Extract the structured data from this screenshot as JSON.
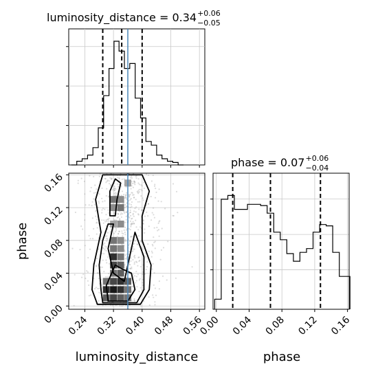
{
  "chart_data": [
    {
      "type": "histogram",
      "panel": "luminosity_distance marginal",
      "title": {
        "main": "luminosity_distance = 0.34",
        "sup": "+0.06",
        "sub": "−0.05"
      },
      "x_range": [
        0.195,
        0.575
      ],
      "y_range": [
        0,
        1
      ],
      "bins": [
        {
          "x": 0.21,
          "y": 0.0
        },
        {
          "x": 0.225,
          "y": 0.03
        },
        {
          "x": 0.24,
          "y": 0.05
        },
        {
          "x": 0.255,
          "y": 0.08
        },
        {
          "x": 0.27,
          "y": 0.14
        },
        {
          "x": 0.285,
          "y": 0.3
        },
        {
          "x": 0.3,
          "y": 0.56
        },
        {
          "x": 0.315,
          "y": 0.78
        },
        {
          "x": 0.328,
          "y": 1.0
        },
        {
          "x": 0.343,
          "y": 0.92
        },
        {
          "x": 0.358,
          "y": 0.78
        },
        {
          "x": 0.373,
          "y": 0.82
        },
        {
          "x": 0.388,
          "y": 0.54
        },
        {
          "x": 0.403,
          "y": 0.38
        },
        {
          "x": 0.418,
          "y": 0.19
        },
        {
          "x": 0.433,
          "y": 0.16
        },
        {
          "x": 0.448,
          "y": 0.08
        },
        {
          "x": 0.463,
          "y": 0.05
        },
        {
          "x": 0.478,
          "y": 0.03
        },
        {
          "x": 0.493,
          "y": 0.02
        },
        {
          "x": 0.508,
          "y": 0.0
        }
      ],
      "quantile_lines": [
        0.29,
        0.343,
        0.4
      ],
      "truth_line": 0.36
    },
    {
      "type": "histogram",
      "panel": "phase marginal",
      "title": {
        "main": "phase = 0.07",
        "sup": "+0.06",
        "sub": "−0.04"
      },
      "x_range": [
        -0.004,
        0.162
      ],
      "y_range": [
        0,
        1
      ],
      "x_ticks": [
        "0.00",
        "0.04",
        "0.08",
        "0.12",
        "0.16"
      ],
      "x_tick_values": [
        0.0,
        0.04,
        0.08,
        0.12,
        0.16
      ],
      "xlabel": "phase",
      "bins": [
        {
          "x": 0.002,
          "y": 0.08
        },
        {
          "x": 0.01,
          "y": 0.87
        },
        {
          "x": 0.018,
          "y": 0.9
        },
        {
          "x": 0.026,
          "y": 0.79
        },
        {
          "x": 0.034,
          "y": 0.79
        },
        {
          "x": 0.042,
          "y": 0.83
        },
        {
          "x": 0.05,
          "y": 0.83
        },
        {
          "x": 0.058,
          "y": 0.82
        },
        {
          "x": 0.066,
          "y": 0.76
        },
        {
          "x": 0.074,
          "y": 0.61
        },
        {
          "x": 0.082,
          "y": 0.55
        },
        {
          "x": 0.09,
          "y": 0.44
        },
        {
          "x": 0.098,
          "y": 0.38
        },
        {
          "x": 0.106,
          "y": 0.45
        },
        {
          "x": 0.114,
          "y": 0.48
        },
        {
          "x": 0.122,
          "y": 0.61
        },
        {
          "x": 0.13,
          "y": 0.67
        },
        {
          "x": 0.138,
          "y": 0.66
        },
        {
          "x": 0.146,
          "y": 0.45
        },
        {
          "x": 0.154,
          "y": 0.26
        },
        {
          "x": 0.16,
          "y": 0.26
        }
      ],
      "quantile_lines": [
        0.02,
        0.066,
        0.127
      ]
    },
    {
      "type": "heatmap",
      "panel": "2d posterior",
      "x_range": [
        0.195,
        0.575
      ],
      "y_range": [
        -0.004,
        0.162
      ],
      "x_ticks": [
        "0.24",
        "0.32",
        "0.40",
        "0.48",
        "0.56"
      ],
      "x_tick_values": [
        0.24,
        0.32,
        0.4,
        0.48,
        0.56
      ],
      "y_ticks": [
        "0.00",
        "0.04",
        "0.08",
        "0.12",
        "0.16"
      ],
      "y_tick_values": [
        0.0,
        0.04,
        0.08,
        0.12,
        0.16
      ],
      "xlabel": "luminosity_distance",
      "ylabel": "phase",
      "density_cells": [
        {
          "x": 0.3,
          "y": 0.01,
          "v": 0.7
        },
        {
          "x": 0.32,
          "y": 0.01,
          "v": 0.8
        },
        {
          "x": 0.34,
          "y": 0.01,
          "v": 0.7
        },
        {
          "x": 0.36,
          "y": 0.01,
          "v": 0.6
        },
        {
          "x": 0.3,
          "y": 0.02,
          "v": 0.9
        },
        {
          "x": 0.32,
          "y": 0.02,
          "v": 1.0
        },
        {
          "x": 0.34,
          "y": 0.02,
          "v": 0.9
        },
        {
          "x": 0.36,
          "y": 0.02,
          "v": 0.6
        },
        {
          "x": 0.3,
          "y": 0.03,
          "v": 0.6
        },
        {
          "x": 0.32,
          "y": 0.03,
          "v": 0.8
        },
        {
          "x": 0.34,
          "y": 0.03,
          "v": 0.9
        },
        {
          "x": 0.36,
          "y": 0.03,
          "v": 0.7
        },
        {
          "x": 0.32,
          "y": 0.04,
          "v": 0.6
        },
        {
          "x": 0.34,
          "y": 0.04,
          "v": 0.7
        },
        {
          "x": 0.32,
          "y": 0.05,
          "v": 0.8
        },
        {
          "x": 0.34,
          "y": 0.05,
          "v": 0.7
        },
        {
          "x": 0.32,
          "y": 0.06,
          "v": 0.9
        },
        {
          "x": 0.34,
          "y": 0.06,
          "v": 0.6
        },
        {
          "x": 0.32,
          "y": 0.07,
          "v": 0.6
        },
        {
          "x": 0.34,
          "y": 0.07,
          "v": 0.5
        },
        {
          "x": 0.32,
          "y": 0.08,
          "v": 0.6
        },
        {
          "x": 0.34,
          "y": 0.08,
          "v": 0.5
        },
        {
          "x": 0.32,
          "y": 0.1,
          "v": 0.4
        },
        {
          "x": 0.34,
          "y": 0.1,
          "v": 0.5
        },
        {
          "x": 0.32,
          "y": 0.12,
          "v": 0.5
        },
        {
          "x": 0.34,
          "y": 0.12,
          "v": 0.6
        },
        {
          "x": 0.32,
          "y": 0.13,
          "v": 0.6
        },
        {
          "x": 0.34,
          "y": 0.13,
          "v": 0.5
        },
        {
          "x": 0.36,
          "y": 0.15,
          "v": 0.4
        }
      ],
      "contours": [
        [
          [
            0.275,
            0.002
          ],
          [
            0.395,
            0.002
          ],
          [
            0.42,
            0.02
          ],
          [
            0.425,
            0.05
          ],
          [
            0.4,
            0.08
          ],
          [
            0.4,
            0.11
          ],
          [
            0.42,
            0.14
          ],
          [
            0.4,
            0.16
          ],
          [
            0.29,
            0.16
          ],
          [
            0.27,
            0.13
          ],
          [
            0.285,
            0.09
          ],
          [
            0.265,
            0.05
          ],
          [
            0.26,
            0.02
          ],
          [
            0.275,
            0.002
          ]
        ],
        [
          [
            0.29,
            0.004
          ],
          [
            0.385,
            0.004
          ],
          [
            0.405,
            0.02
          ],
          [
            0.405,
            0.06
          ],
          [
            0.38,
            0.09
          ],
          [
            0.365,
            0.06
          ],
          [
            0.35,
            0.03
          ],
          [
            0.32,
            0.04
          ],
          [
            0.305,
            0.07
          ],
          [
            0.32,
            0.1
          ],
          [
            0.305,
            0.1
          ],
          [
            0.29,
            0.08
          ],
          [
            0.28,
            0.05
          ],
          [
            0.285,
            0.02
          ],
          [
            0.29,
            0.004
          ]
        ],
        [
          [
            0.305,
            0.006
          ],
          [
            0.36,
            0.006
          ],
          [
            0.38,
            0.02
          ],
          [
            0.37,
            0.04
          ],
          [
            0.345,
            0.045
          ],
          [
            0.325,
            0.05
          ],
          [
            0.315,
            0.04
          ],
          [
            0.3,
            0.025
          ],
          [
            0.305,
            0.006
          ]
        ],
        [
          [
            0.31,
            0.11
          ],
          [
            0.325,
            0.11
          ],
          [
            0.33,
            0.13
          ],
          [
            0.34,
            0.15
          ],
          [
            0.325,
            0.155
          ],
          [
            0.31,
            0.14
          ],
          [
            0.31,
            0.11
          ]
        ]
      ],
      "truth_line": 0.36
    }
  ]
}
